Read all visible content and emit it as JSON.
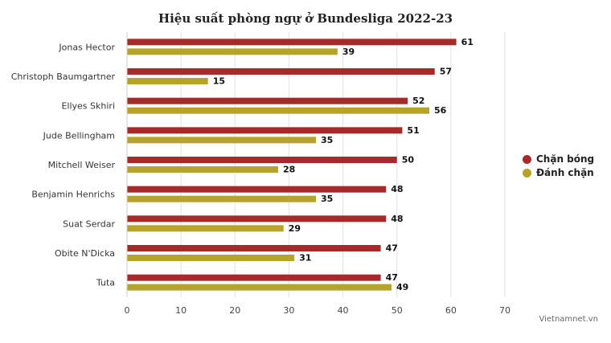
{
  "chart_data": {
    "type": "bar",
    "orientation": "horizontal",
    "title": "Hiệu suất phòng ngự ở Bundesliga 2022-23",
    "categories": [
      "Jonas Hector",
      "Christoph Baumgartner",
      "Ellyes Skhiri",
      "Jude Bellingham",
      "Mitchell Weiser",
      "Benjamin Henrichs",
      "Suat Serdar",
      "Obite N'Dicka",
      "Tuta"
    ],
    "series": [
      {
        "name": "Chặn bóng",
        "color": "#a52a2a",
        "values": [
          61,
          57,
          52,
          51,
          50,
          48,
          48,
          47,
          47
        ]
      },
      {
        "name": "Đánh chặn",
        "color": "#b8a32a",
        "values": [
          39,
          15,
          56,
          35,
          28,
          35,
          29,
          31,
          49
        ]
      }
    ],
    "xlim": [
      0,
      70
    ],
    "xticks": [
      0,
      10,
      20,
      30,
      40,
      50,
      60,
      70
    ],
    "grid": true,
    "legend_position": "right",
    "credit": "Vietnamnet.vn"
  }
}
